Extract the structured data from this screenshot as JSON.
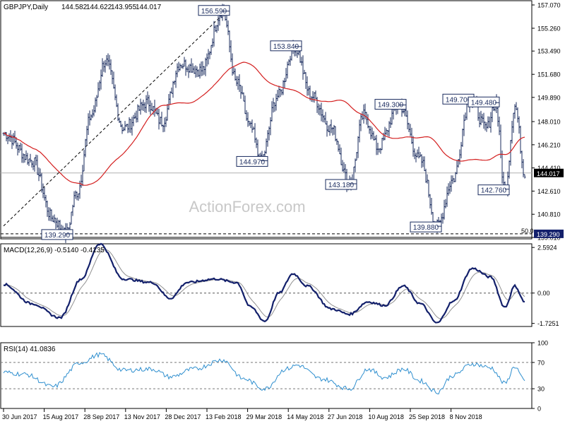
{
  "chart_data": [
    {
      "type": "ohlc",
      "symbol_title": "GBPJPY,Daily",
      "ohlc_header": [
        "144.582",
        "144.622",
        "143.955",
        "144.017"
      ],
      "last_price": "144.017",
      "y_ticks": [
        "157.070",
        "155.260",
        "153.490",
        "151.680",
        "149.890",
        "148.010",
        "146.210",
        "144.410",
        "142.610",
        "140.810",
        "139.010"
      ],
      "ylim": [
        138.9,
        157.4
      ],
      "x_tick_labels": [
        "30 Jun 2017",
        "15 Aug 2017",
        "28 Sep 2017",
        "13 Nov 2017",
        "28 Dec 2017",
        "13 Feb 2018",
        "29 Mar 2018",
        "14 May 2018",
        "27 Jun 2018",
        "10 Aug 2018",
        "25 Sep 2018",
        "8 Nov 2018"
      ],
      "num_bars": 370,
      "price_anchors": [
        {
          "bar": 0,
          "price": 147.1
        },
        {
          "bar": 20,
          "price": 145.0
        },
        {
          "bar": 35,
          "price": 140.5
        },
        {
          "bar": 44,
          "price": 139.29
        },
        {
          "bar": 52,
          "price": 142.5
        },
        {
          "bar": 62,
          "price": 148.5
        },
        {
          "bar": 72,
          "price": 152.7
        },
        {
          "bar": 85,
          "price": 147.5
        },
        {
          "bar": 102,
          "price": 149.5
        },
        {
          "bar": 112,
          "price": 148.0
        },
        {
          "bar": 125,
          "price": 152.5
        },
        {
          "bar": 140,
          "price": 152.0
        },
        {
          "bar": 155,
          "price": 156.59
        },
        {
          "bar": 165,
          "price": 151.0
        },
        {
          "bar": 175,
          "price": 147.5
        },
        {
          "bar": 182,
          "price": 144.97
        },
        {
          "bar": 194,
          "price": 150.0
        },
        {
          "bar": 206,
          "price": 153.84
        },
        {
          "bar": 218,
          "price": 150.0
        },
        {
          "bar": 232,
          "price": 147.5
        },
        {
          "bar": 245,
          "price": 143.18
        },
        {
          "bar": 255,
          "price": 148.5
        },
        {
          "bar": 265,
          "price": 146.0
        },
        {
          "bar": 280,
          "price": 149.3
        },
        {
          "bar": 295,
          "price": 145.0
        },
        {
          "bar": 307,
          "price": 139.88
        },
        {
          "bar": 318,
          "price": 143.5
        },
        {
          "bar": 330,
          "price": 149.7
        },
        {
          "bar": 342,
          "price": 147.5
        },
        {
          "bar": 348,
          "price": 149.48
        },
        {
          "bar": 355,
          "price": 142.76
        },
        {
          "bar": 362,
          "price": 149.2
        },
        {
          "bar": 369,
          "price": 144.017
        }
      ],
      "annotations": [
        {
          "label": "156.590",
          "bar": 155,
          "price": 156.59,
          "side": "top"
        },
        {
          "label": "153.840",
          "bar": 206,
          "price": 153.84,
          "side": "top"
        },
        {
          "label": "144.970",
          "bar": 182,
          "price": 144.97,
          "side": "bottom"
        },
        {
          "label": "149.300",
          "bar": 280,
          "price": 149.3,
          "side": "top"
        },
        {
          "label": "143.180",
          "bar": 245,
          "price": 143.18,
          "side": "bottom"
        },
        {
          "label": "149.700",
          "bar": 330,
          "price": 149.7,
          "side": "top"
        },
        {
          "label": "149.480",
          "bar": 348,
          "price": 149.48,
          "side": "top"
        },
        {
          "label": "142.760",
          "bar": 355,
          "price": 142.76,
          "side": "bottom"
        },
        {
          "label": "139.880",
          "bar": 307,
          "price": 139.88,
          "side": "bottom"
        },
        {
          "label": "139.290",
          "bar": 44,
          "price": 139.29,
          "side": "bottom"
        }
      ],
      "support_level": "139.290",
      "fib_label": "50.0",
      "trendline": [
        {
          "bar": 0,
          "price": 139.9
        },
        {
          "bar": 155,
          "price": 156.3
        }
      ],
      "moving_average": "red line",
      "colors": {
        "price_bars": "#1a2b5e",
        "moving_average": "#d42020",
        "annotation_box": "#1a2b5e",
        "last_price_box": "#000000"
      }
    },
    {
      "type": "line",
      "label": "MACD(12,26,9) -0.5140 -0.4135",
      "y_ticks": [
        "2.5924",
        "0.00",
        "-1.7251"
      ],
      "ylim": [
        -1.9,
        2.8
      ],
      "anchors": [
        {
          "bar": 0,
          "value": 0.5
        },
        {
          "bar": 20,
          "value": -0.6
        },
        {
          "bar": 40,
          "value": -1.4
        },
        {
          "bar": 55,
          "value": 0.8
        },
        {
          "bar": 68,
          "value": 2.8
        },
        {
          "bar": 85,
          "value": 0.8
        },
        {
          "bar": 105,
          "value": 0.6
        },
        {
          "bar": 118,
          "value": -0.3
        },
        {
          "bar": 130,
          "value": 0.6
        },
        {
          "bar": 150,
          "value": 0.8
        },
        {
          "bar": 165,
          "value": 0.6
        },
        {
          "bar": 175,
          "value": -0.8
        },
        {
          "bar": 185,
          "value": -1.6
        },
        {
          "bar": 195,
          "value": 0.0
        },
        {
          "bar": 205,
          "value": 1.1
        },
        {
          "bar": 215,
          "value": 0.4
        },
        {
          "bar": 232,
          "value": -0.9
        },
        {
          "bar": 245,
          "value": -1.2
        },
        {
          "bar": 258,
          "value": -0.5
        },
        {
          "bar": 270,
          "value": -0.7
        },
        {
          "bar": 283,
          "value": 0.4
        },
        {
          "bar": 295,
          "value": -0.6
        },
        {
          "bar": 307,
          "value": -1.7
        },
        {
          "bar": 318,
          "value": -0.5
        },
        {
          "bar": 332,
          "value": 1.4
        },
        {
          "bar": 345,
          "value": 0.9
        },
        {
          "bar": 355,
          "value": -0.8
        },
        {
          "bar": 362,
          "value": 0.4
        },
        {
          "bar": 369,
          "value": -0.51
        }
      ],
      "signal_color": "#909090",
      "macd_color": "#13206b"
    },
    {
      "type": "line",
      "label": "RSI(14) 41.0836",
      "y_ticks": [
        "100",
        "70",
        "30",
        "0"
      ],
      "ylim": [
        0,
        100
      ],
      "reference_levels": [
        70,
        30
      ],
      "anchors": [
        {
          "bar": 0,
          "value": 55
        },
        {
          "bar": 15,
          "value": 52
        },
        {
          "bar": 35,
          "value": 33
        },
        {
          "bar": 55,
          "value": 70
        },
        {
          "bar": 68,
          "value": 82
        },
        {
          "bar": 85,
          "value": 58
        },
        {
          "bar": 105,
          "value": 60
        },
        {
          "bar": 118,
          "value": 48
        },
        {
          "bar": 135,
          "value": 60
        },
        {
          "bar": 155,
          "value": 74
        },
        {
          "bar": 170,
          "value": 45
        },
        {
          "bar": 185,
          "value": 30
        },
        {
          "bar": 200,
          "value": 60
        },
        {
          "bar": 208,
          "value": 66
        },
        {
          "bar": 225,
          "value": 45
        },
        {
          "bar": 245,
          "value": 30
        },
        {
          "bar": 258,
          "value": 60
        },
        {
          "bar": 270,
          "value": 47
        },
        {
          "bar": 283,
          "value": 60
        },
        {
          "bar": 295,
          "value": 42
        },
        {
          "bar": 307,
          "value": 25
        },
        {
          "bar": 318,
          "value": 50
        },
        {
          "bar": 332,
          "value": 68
        },
        {
          "bar": 345,
          "value": 62
        },
        {
          "bar": 355,
          "value": 38
        },
        {
          "bar": 362,
          "value": 64
        },
        {
          "bar": 369,
          "value": 41.08
        }
      ],
      "line_color": "#2f8fcf"
    }
  ],
  "watermark": "ActionForex.com"
}
